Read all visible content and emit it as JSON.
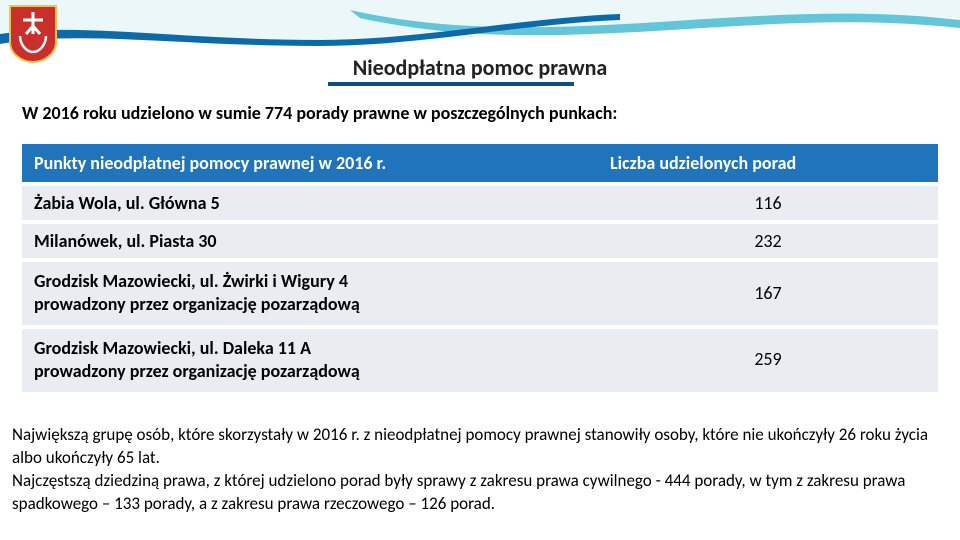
{
  "title": "Nieodpłatna pomoc prawna",
  "intro": "W 2016 roku udzielono w sumie 774 porady prawne w poszczególnych punkach:",
  "table": {
    "header_col1": "Punkty nieodpłatnej pomocy prawnej w 2016 r.",
    "header_col2": "Liczba udzielonych porad",
    "rows": [
      {
        "label": "Żabia Wola, ul. Główna 5",
        "value": "116"
      },
      {
        "label": "Milanówek, ul. Piasta 30",
        "value": "232"
      },
      {
        "label": "Grodzisk Mazowiecki, ul. Żwirki i Wigury 4\nprowadzony przez organizację pozarządową",
        "value": "167"
      },
      {
        "label": "Grodzisk Mazowiecki, ul. Daleka 11 A\nprowadzony przez organizację pozarządową",
        "value": "259"
      }
    ]
  },
  "footnote": "Największą grupę osób, które skorzystały w 2016 r. z nieodpłatnej pomocy prawnej stanowiły osoby, które nie ukończyły 26 roku życia albo ukończyły 65 lat.\nNajczęstszą dziedziną prawa, z której udzielono porad były sprawy z zakresu prawa cywilnego - 444 porady, w tym z zakresu prawa spadkowego – 133 porady, a z zakresu prawa rzeczowego – 126 porad.",
  "colors": {
    "header_bg": "#1f74bb",
    "row_bg": "#e9edf2",
    "underline": "#0b4c8c",
    "wave1": "#ecf7fa",
    "wave2": "#62c5d8",
    "wave3": "#0d6aa8",
    "shield_bg": "#c9302c",
    "shield_border": "#f0c14b"
  }
}
